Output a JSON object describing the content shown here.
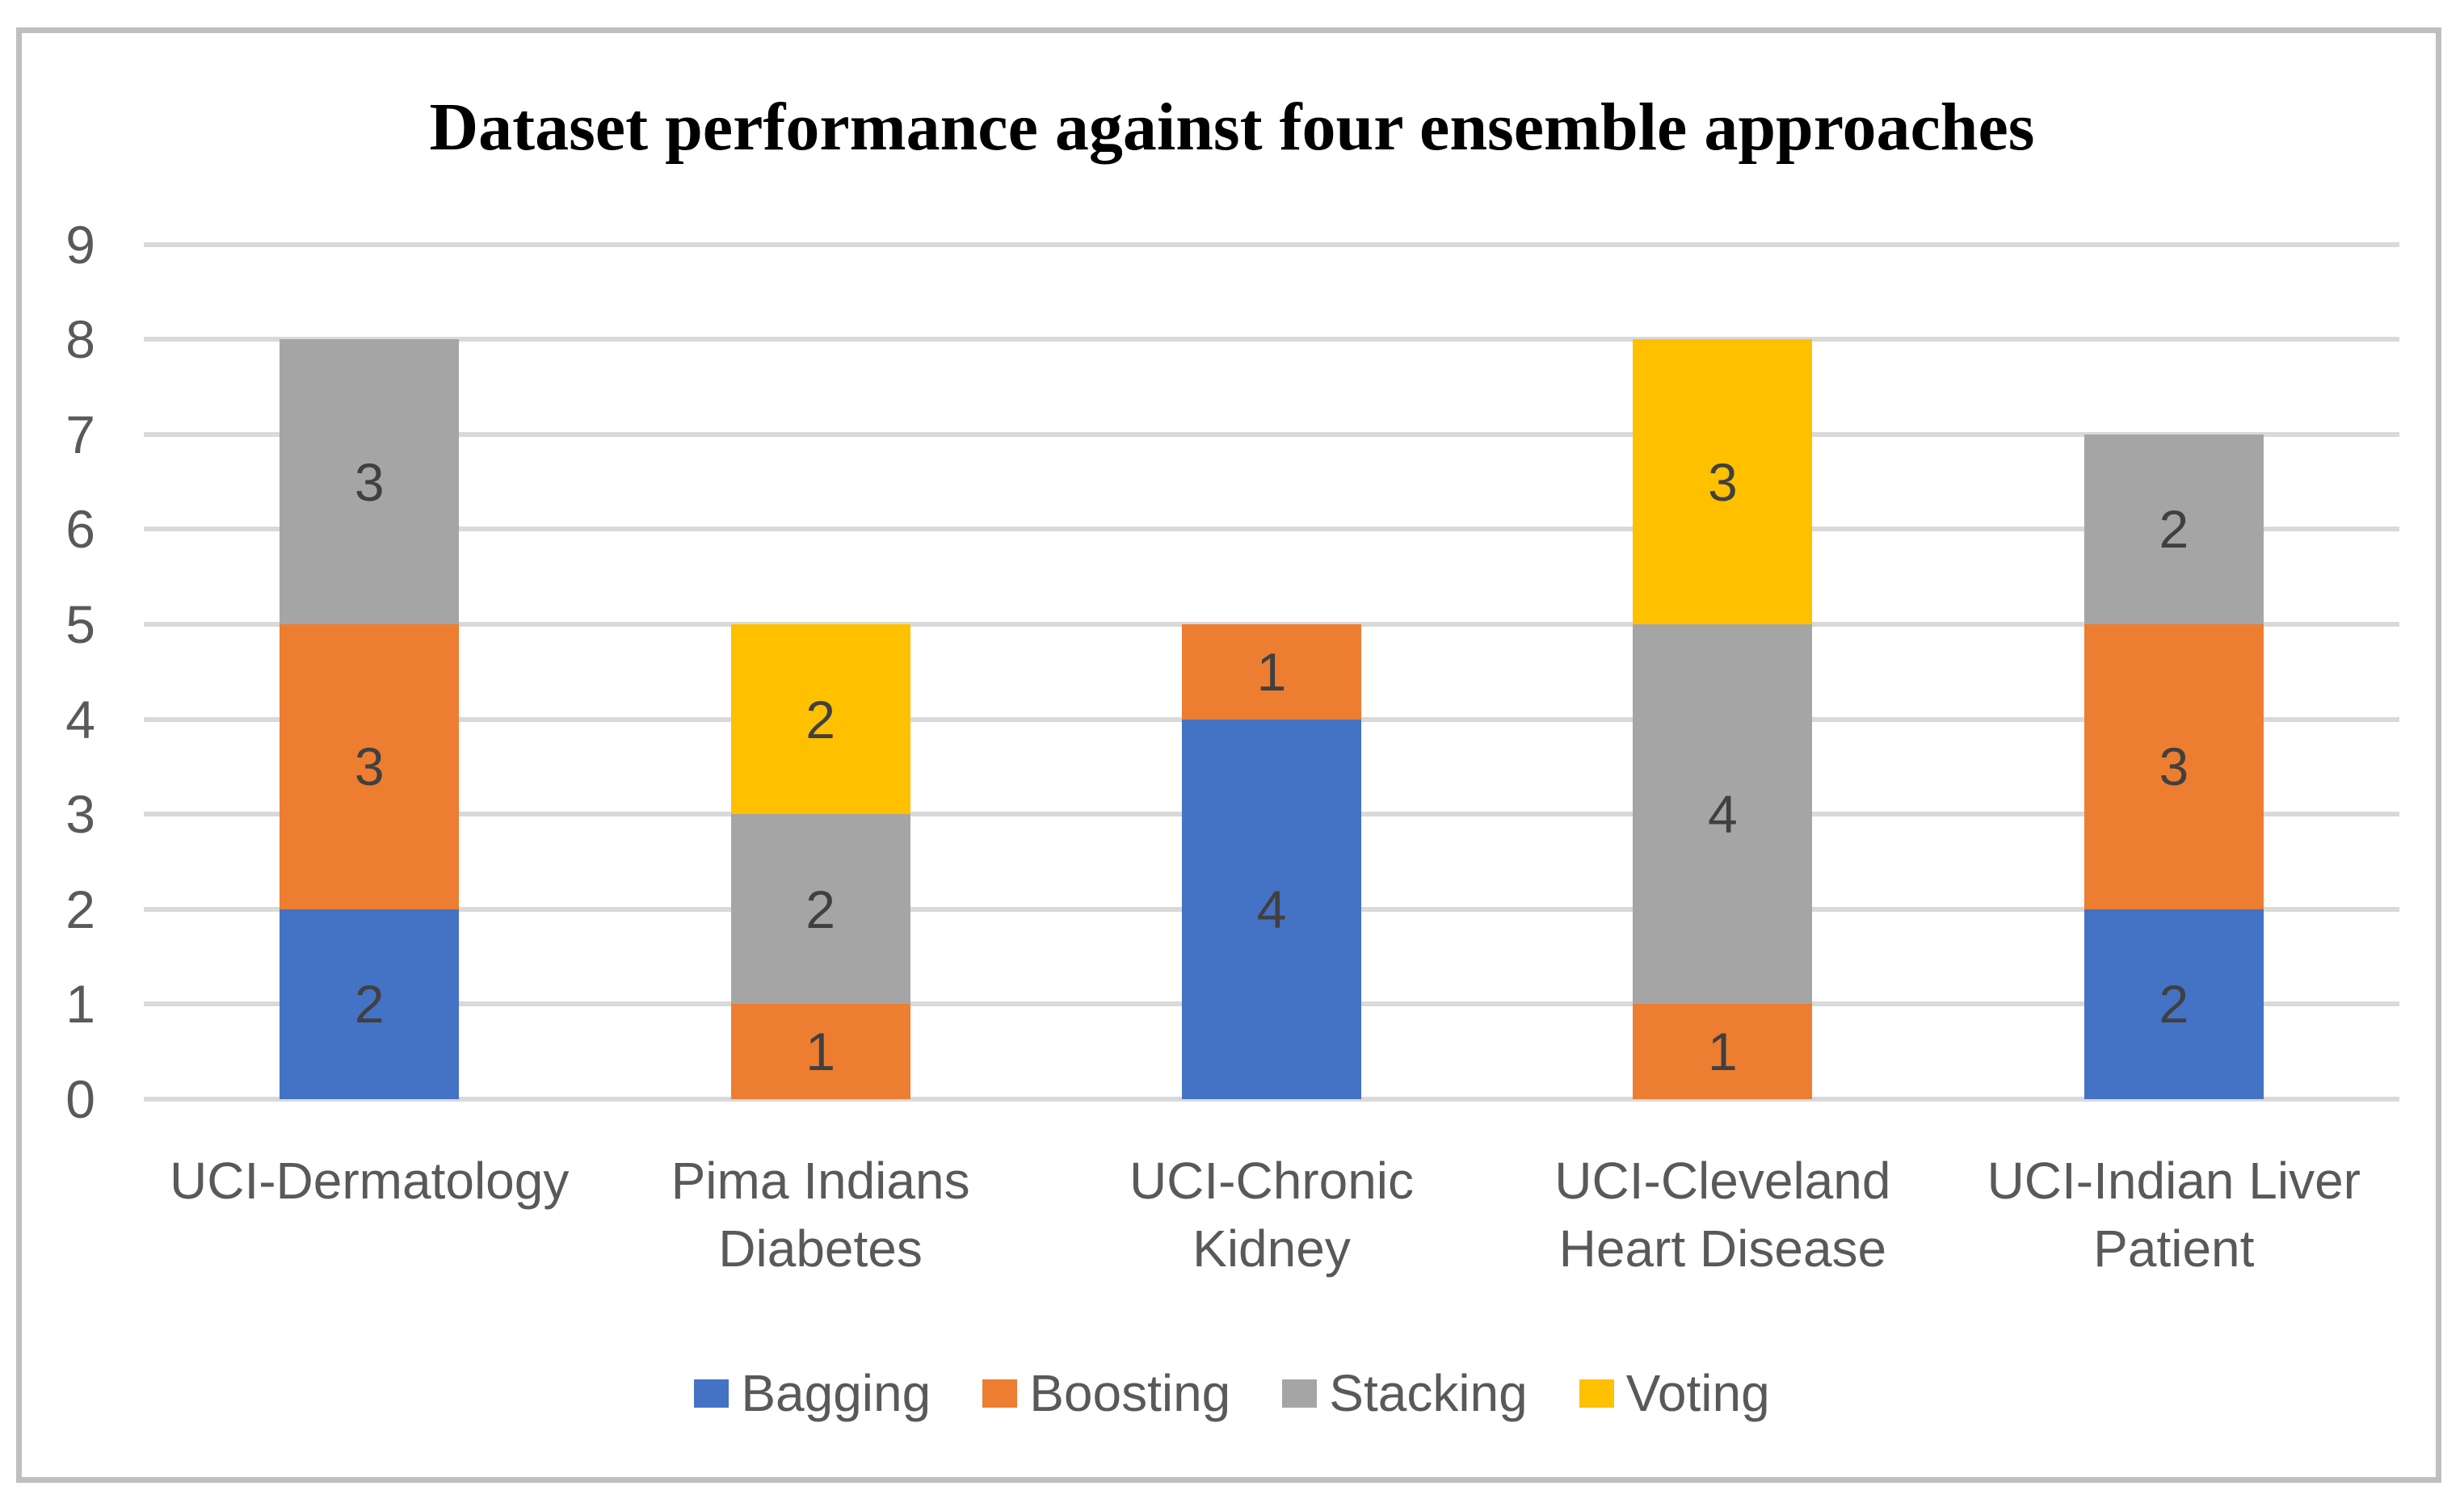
{
  "chart_data": {
    "type": "bar",
    "stacked": true,
    "title": "Dataset performance against four ensemble approaches",
    "categories": [
      "UCI-Dermatology",
      "Pima Indians Diabetes",
      "UCI-Chronic Kidney",
      "UCI-Cleveland Heart Disease",
      "UCI-Indian Liver Patient"
    ],
    "category_label_lines": [
      [
        "UCI-Dermatology"
      ],
      [
        "Pima Indians",
        "Diabetes"
      ],
      [
        "UCI-Chronic",
        "Kidney"
      ],
      [
        "UCI-Cleveland",
        "Heart Disease"
      ],
      [
        "UCI-Indian Liver",
        "Patient"
      ]
    ],
    "series": [
      {
        "name": "Bagging",
        "color": "#4472C4",
        "values": [
          2,
          0,
          4,
          0,
          2
        ]
      },
      {
        "name": "Boosting",
        "color": "#ED7D31",
        "values": [
          3,
          1,
          1,
          1,
          3
        ]
      },
      {
        "name": "Stacking",
        "color": "#A5A5A5",
        "values": [
          3,
          2,
          0,
          4,
          2
        ]
      },
      {
        "name": "Voting",
        "color": "#FFC000",
        "values": [
          0,
          2,
          0,
          3,
          0
        ]
      }
    ],
    "totals": [
      8,
      5,
      5,
      8,
      7
    ],
    "ylim": [
      0,
      9
    ],
    "yticks": [
      "0",
      "1",
      "2",
      "3",
      "4",
      "5",
      "6",
      "7",
      "8",
      "9"
    ],
    "grid": true,
    "legend_position": "bottom",
    "legend_labels": [
      "Bagging",
      "Boosting",
      "Stacking",
      "Voting"
    ],
    "data_labels_shown": true
  },
  "colors": {
    "background": "#FFFFFF",
    "frame_border": "#BFBFBF",
    "gridline": "#D9D9D9",
    "axis_text": "#595959",
    "data_label_text": "#404040",
    "title_text": "#000000"
  }
}
